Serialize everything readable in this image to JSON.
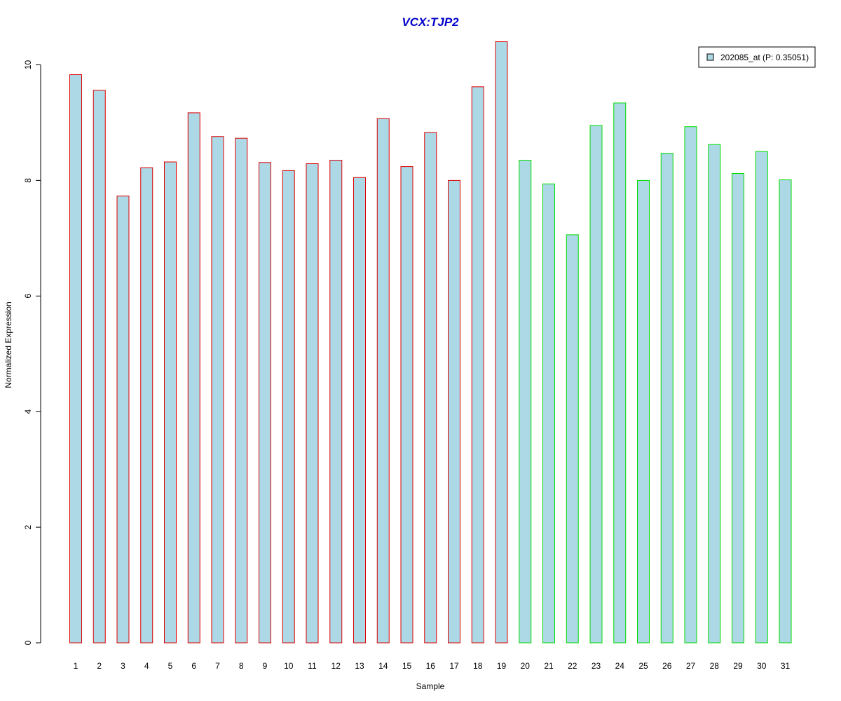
{
  "chart_data": {
    "type": "bar",
    "title": "VCX:TJP2",
    "xlabel": "Sample",
    "ylabel": "Normalized Expression",
    "categories": [
      "1",
      "2",
      "3",
      "4",
      "5",
      "6",
      "7",
      "8",
      "9",
      "10",
      "11",
      "12",
      "13",
      "14",
      "15",
      "16",
      "17",
      "18",
      "19",
      "20",
      "21",
      "22",
      "23",
      "24",
      "25",
      "26",
      "27",
      "28",
      "29",
      "30",
      "31"
    ],
    "values": [
      9.83,
      9.56,
      7.73,
      8.22,
      8.32,
      9.17,
      8.76,
      8.73,
      8.31,
      8.17,
      8.29,
      8.35,
      8.05,
      9.07,
      8.24,
      8.83,
      8.0,
      9.62,
      10.4,
      8.35,
      7.94,
      7.06,
      8.95,
      9.34,
      8.0,
      8.47,
      8.93,
      8.62,
      8.12,
      8.5,
      8.01
    ],
    "ylim": [
      0,
      10.4
    ],
    "yticks": [
      0,
      2,
      4,
      6,
      8,
      10
    ],
    "group_edge_colors": [
      "#dd0000",
      "#dd0000",
      "#dd0000",
      "#dd0000",
      "#dd0000",
      "#dd0000",
      "#dd0000",
      "#dd0000",
      "#dd0000",
      "#dd0000",
      "#dd0000",
      "#dd0000",
      "#dd0000",
      "#dd0000",
      "#dd0000",
      "#dd0000",
      "#dd0000",
      "#dd0000",
      "#dd0000",
      "#00dd00",
      "#00dd00",
      "#00dd00",
      "#00dd00",
      "#00dd00",
      "#00dd00",
      "#00dd00",
      "#00dd00",
      "#00dd00",
      "#00dd00",
      "#00dd00",
      "#00dd00"
    ],
    "bar_fill": "#add8e6",
    "title_color": "#0000cc",
    "legend": {
      "entries": [
        "202085_at (P: 0.35051)"
      ],
      "placement": "top-right"
    },
    "grid": false
  }
}
